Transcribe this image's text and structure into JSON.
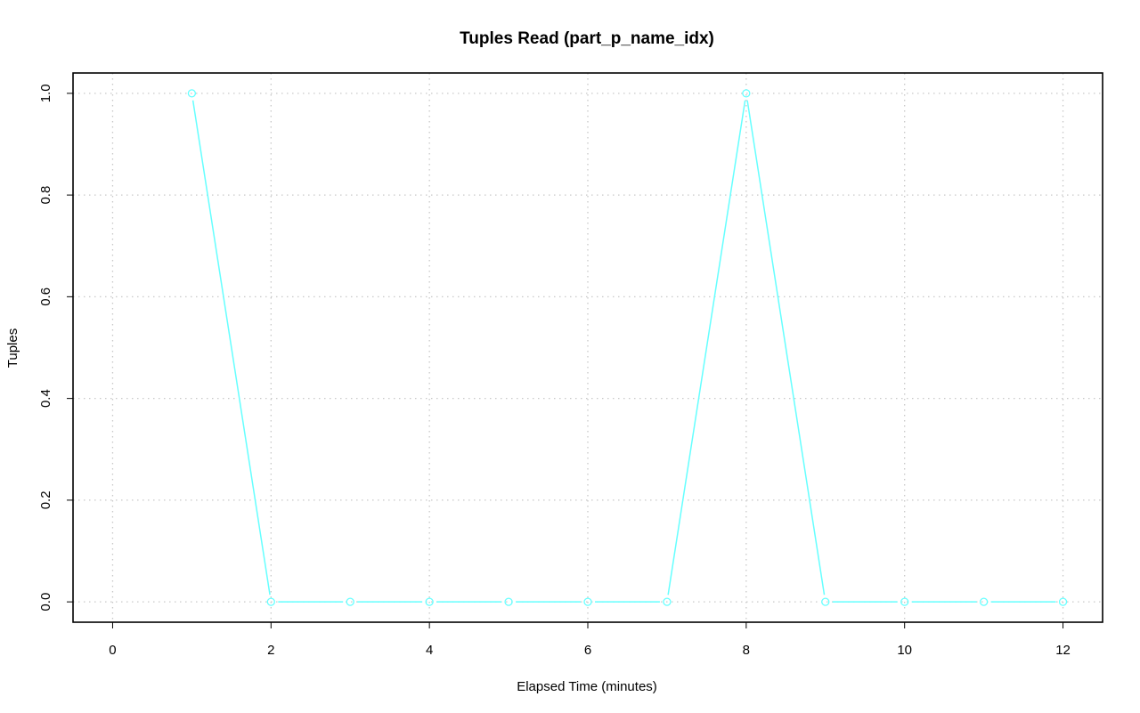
{
  "chart_data": {
    "type": "line",
    "title": "Tuples Read (part_p_name_idx)",
    "xlabel": "Elapsed Time (minutes)",
    "ylabel": "Tuples",
    "xlim": [
      -0.5,
      12.5
    ],
    "ylim": [
      -0.04,
      1.04
    ],
    "x_ticks": [
      0,
      2,
      4,
      6,
      8,
      10,
      12
    ],
    "x_tick_labels": [
      "0",
      "2",
      "4",
      "6",
      "8",
      "10",
      "12"
    ],
    "y_ticks": [
      0,
      0.2,
      0.4,
      0.6,
      0.8,
      1.0
    ],
    "y_tick_labels": [
      "0.0",
      "0.2",
      "0.4",
      "0.6",
      "0.8",
      "1.0"
    ],
    "grid": true,
    "series": [
      {
        "color": "#66ffff",
        "x": [
          1,
          2,
          3,
          4,
          5,
          6,
          7,
          8,
          9,
          10,
          11,
          12
        ],
        "values": [
          1,
          0,
          0,
          0,
          0,
          0,
          0,
          1,
          0,
          0,
          0,
          0
        ]
      }
    ]
  }
}
